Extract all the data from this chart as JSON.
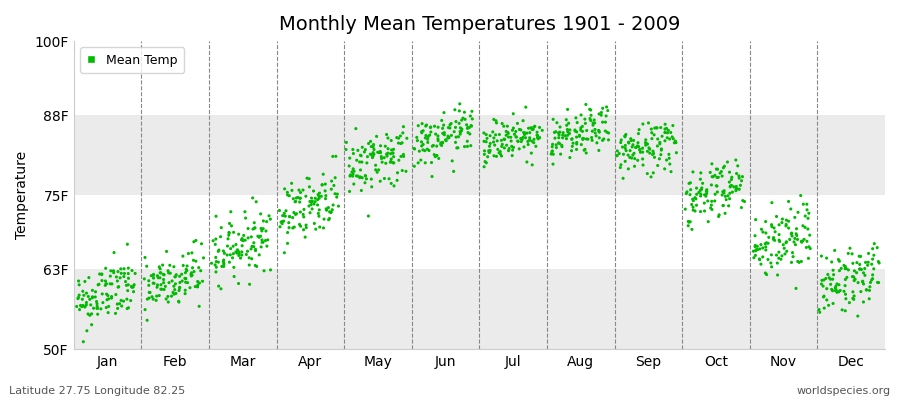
{
  "title": "Monthly Mean Temperatures 1901 - 2009",
  "ylabel": "Temperature",
  "xlabel": "",
  "ylim": [
    50,
    100
  ],
  "yticks": [
    50,
    63,
    75,
    88,
    100
  ],
  "ytick_labels": [
    "50F",
    "63F",
    "75F",
    "88F",
    "100F"
  ],
  "month_labels": [
    "Jan",
    "Feb",
    "Mar",
    "Apr",
    "May",
    "Jun",
    "Jul",
    "Aug",
    "Sep",
    "Oct",
    "Nov",
    "Dec"
  ],
  "dot_color": "#00bb00",
  "bg_color": "#ffffff",
  "bg_band_color": "#ebebeb",
  "legend_label": "Mean Temp",
  "subtitle_left": "Latitude 27.75 Longitude 82.25",
  "subtitle_right": "worldspecies.org",
  "title_fontsize": 14,
  "axis_fontsize": 10,
  "monthly_means_start": [
    57.5,
    59.5,
    65.5,
    72.0,
    79.5,
    83.0,
    83.0,
    83.5,
    81.5,
    74.5,
    66.5,
    60.0
  ],
  "monthly_means_end": [
    60.5,
    62.5,
    68.5,
    75.0,
    82.0,
    85.5,
    85.5,
    86.0,
    84.0,
    77.0,
    69.0,
    63.0
  ],
  "monthly_std": [
    2.5,
    2.5,
    2.5,
    2.5,
    2.5,
    2.0,
    1.8,
    1.8,
    2.2,
    2.5,
    3.0,
    2.5
  ],
  "n_years": 109,
  "seed": 42
}
